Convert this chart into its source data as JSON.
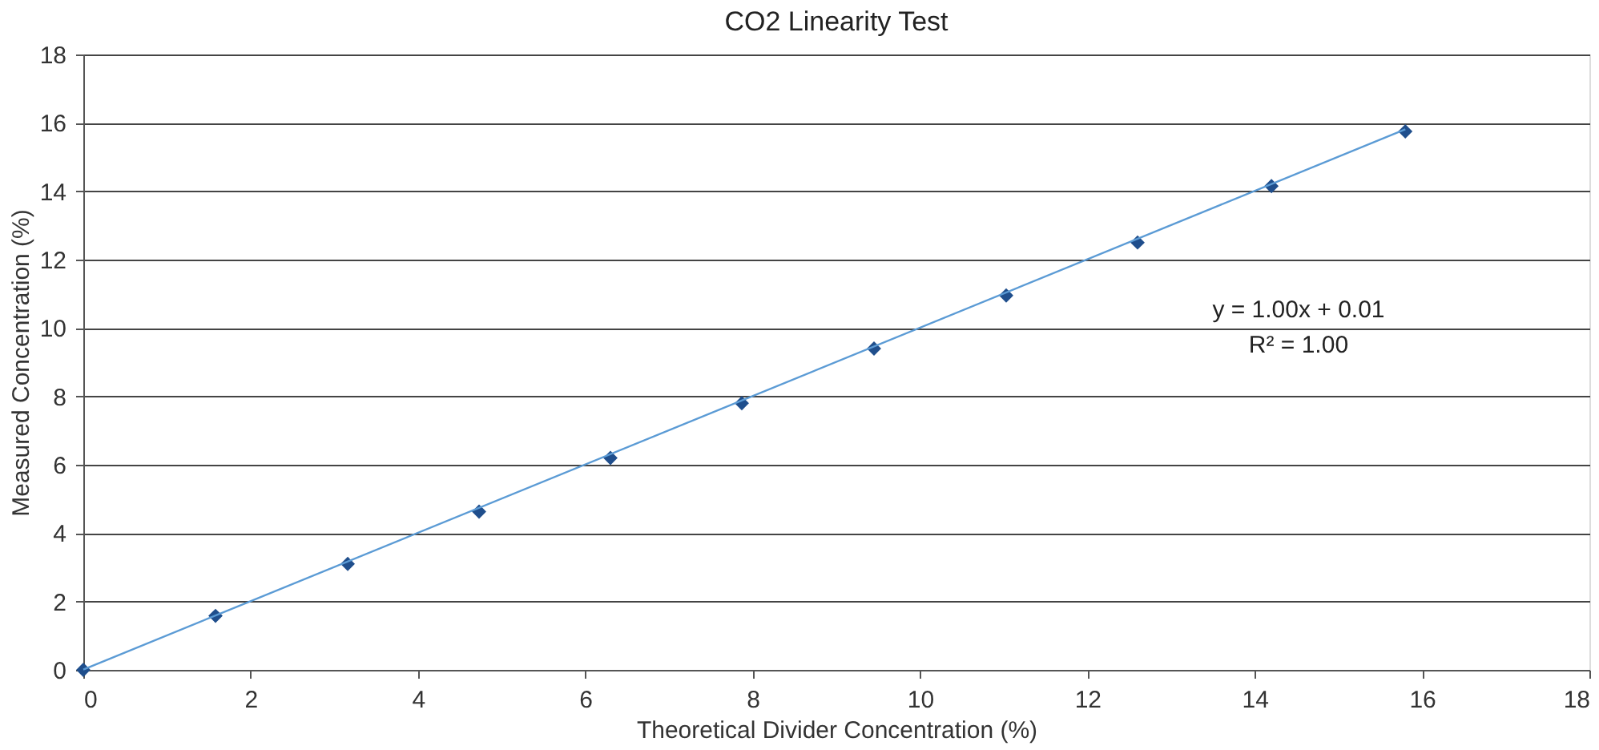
{
  "chart_data": {
    "type": "scatter",
    "title": "CO2 Linearity Test",
    "xlabel": "Theoretical Divider Concentration (%)",
    "ylabel": "Measured Concentration (%)",
    "series": [
      {
        "color": "#1f4e8c",
        "marker": "diamond",
        "x": [
          0,
          1.58,
          3.16,
          4.73,
          6.3,
          7.87,
          9.45,
          11.03,
          12.6,
          14.2,
          15.8
        ],
        "values": [
          0,
          1.58,
          3.1,
          4.63,
          6.2,
          7.8,
          9.4,
          10.95,
          12.5,
          14.15,
          15.75
        ]
      },
      {
        "type": "line",
        "color": "#5b9bd5",
        "marker": "none",
        "x": [
          0,
          15.8
        ],
        "values": [
          0.01,
          15.81
        ]
      }
    ],
    "annotations": [
      "y = 1.00x + 0.01",
      "R² = 1.00"
    ],
    "xlim": [
      0,
      18
    ],
    "xticks": [
      0,
      2,
      4,
      6,
      8,
      10,
      12,
      14,
      16,
      18
    ],
    "ylim": [
      0,
      18
    ],
    "yticks": [
      0,
      2,
      4,
      6,
      8,
      10,
      12,
      14,
      16,
      18
    ],
    "grid": "y"
  }
}
